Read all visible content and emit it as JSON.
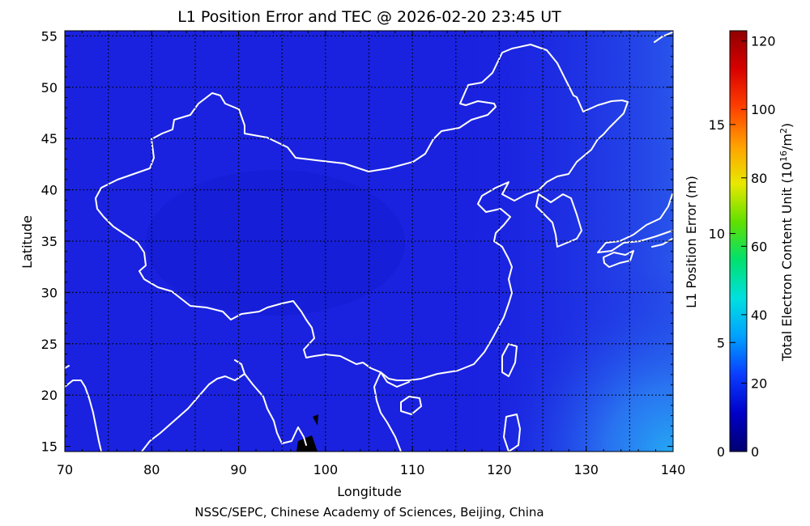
{
  "title": "L1 Position Error and TEC @ 2026-02-20 23:45 UT",
  "credit": "NSSC/SEPC, Chinese Academy of Sciences, Beijing, China",
  "map": {
    "x_axis_label": "Longitude",
    "y_axis_label": "Latitude",
    "lon_range": [
      70,
      140
    ],
    "lat_range": [
      14.5,
      55.5
    ],
    "lon_ticks": [
      70,
      80,
      90,
      100,
      110,
      120,
      130,
      140
    ],
    "lat_ticks": [
      15,
      20,
      25,
      30,
      35,
      40,
      45,
      50,
      55
    ],
    "grid_lons": [
      75,
      80,
      85,
      90,
      95,
      100,
      105,
      110,
      115,
      120,
      125,
      130,
      135
    ],
    "grid_lats": [
      20,
      25,
      30,
      35,
      40,
      45,
      50,
      55
    ],
    "grid": "dotted",
    "base_color": "#1a22e0",
    "coastline_color": "#ffffff"
  },
  "colorbar": {
    "position_error_label": "L1 Position Error (m)",
    "position_error_ticks": [
      "0",
      "5",
      "10",
      "15"
    ],
    "position_error_values": [
      0,
      5,
      10,
      15
    ],
    "position_error_max": 19.3,
    "tec_label_main": "Total Electron Content Unit (10",
    "tec_label_exp1": "16",
    "tec_label_mid": "/m",
    "tec_label_exp2": "2",
    "tec_label_end": ")",
    "tec_ticks": [
      "0",
      "20",
      "40",
      "60",
      "80",
      "100",
      "120"
    ],
    "tec_values": [
      0,
      20,
      40,
      60,
      80,
      100,
      120
    ],
    "tec_max": 123,
    "colors": [
      "#000070",
      "#0000c8",
      "#0a3cff",
      "#00a0ff",
      "#00e0e0",
      "#00e070",
      "#60e000",
      "#e8e800",
      "#ffa000",
      "#ff4000",
      "#d80000",
      "#900000"
    ]
  }
}
